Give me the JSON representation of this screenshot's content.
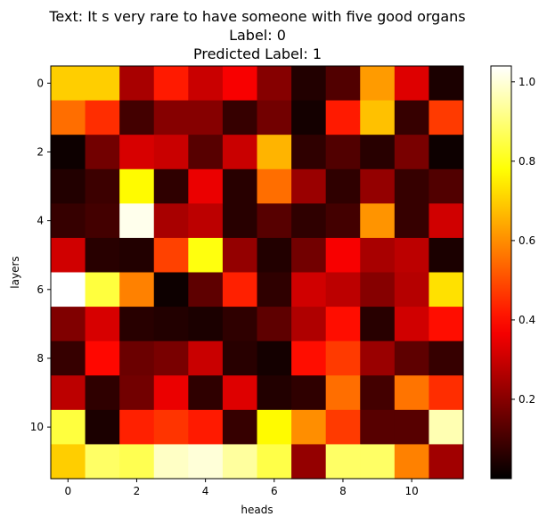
{
  "chart_data": {
    "type": "heatmap",
    "title_lines": [
      "Text: It s very rare to have someone with five good organs",
      "Label: 0",
      "Predicted Label: 1"
    ],
    "xlabel": "heads",
    "ylabel": "layers",
    "x_ticks": [
      0,
      2,
      4,
      6,
      8,
      10
    ],
    "y_ticks": [
      0,
      2,
      4,
      6,
      8,
      10
    ],
    "n_cols": 12,
    "n_rows": 12,
    "colormap": "hot",
    "vmin": 0.0,
    "vmax": 1.04,
    "colorbar_ticks": [
      0.2,
      0.4,
      0.6,
      0.8,
      1.0
    ],
    "values": [
      [
        0.7,
        0.7,
        0.25,
        0.42,
        0.3,
        0.37,
        0.2,
        0.05,
        0.12,
        0.62,
        0.33,
        0.04
      ],
      [
        0.55,
        0.45,
        0.1,
        0.2,
        0.2,
        0.08,
        0.17,
        0.03,
        0.42,
        0.68,
        0.08,
        0.47
      ],
      [
        0.02,
        0.17,
        0.32,
        0.3,
        0.13,
        0.3,
        0.66,
        0.07,
        0.12,
        0.06,
        0.18,
        0.02
      ],
      [
        0.05,
        0.09,
        0.77,
        0.07,
        0.35,
        0.06,
        0.55,
        0.23,
        0.07,
        0.22,
        0.08,
        0.12
      ],
      [
        0.08,
        0.1,
        1.02,
        0.25,
        0.28,
        0.06,
        0.13,
        0.07,
        0.1,
        0.61,
        0.08,
        0.31
      ],
      [
        0.31,
        0.06,
        0.05,
        0.48,
        0.79,
        0.22,
        0.05,
        0.17,
        0.37,
        0.25,
        0.28,
        0.04
      ],
      [
        1.04,
        0.84,
        0.58,
        0.02,
        0.14,
        0.43,
        0.07,
        0.31,
        0.28,
        0.2,
        0.27,
        0.73
      ],
      [
        0.19,
        0.32,
        0.06,
        0.05,
        0.04,
        0.07,
        0.14,
        0.26,
        0.4,
        0.06,
        0.31,
        0.4
      ],
      [
        0.08,
        0.39,
        0.16,
        0.18,
        0.3,
        0.06,
        0.03,
        0.4,
        0.47,
        0.23,
        0.14,
        0.08
      ],
      [
        0.28,
        0.07,
        0.17,
        0.35,
        0.07,
        0.33,
        0.05,
        0.07,
        0.55,
        0.1,
        0.56,
        0.45
      ],
      [
        0.84,
        0.04,
        0.43,
        0.46,
        0.42,
        0.08,
        0.77,
        0.6,
        0.47,
        0.13,
        0.13,
        0.96
      ],
      [
        0.7,
        0.88,
        0.86,
        0.98,
        1.0,
        0.94,
        0.85,
        0.22,
        0.88,
        0.88,
        0.58,
        0.24
      ]
    ]
  }
}
